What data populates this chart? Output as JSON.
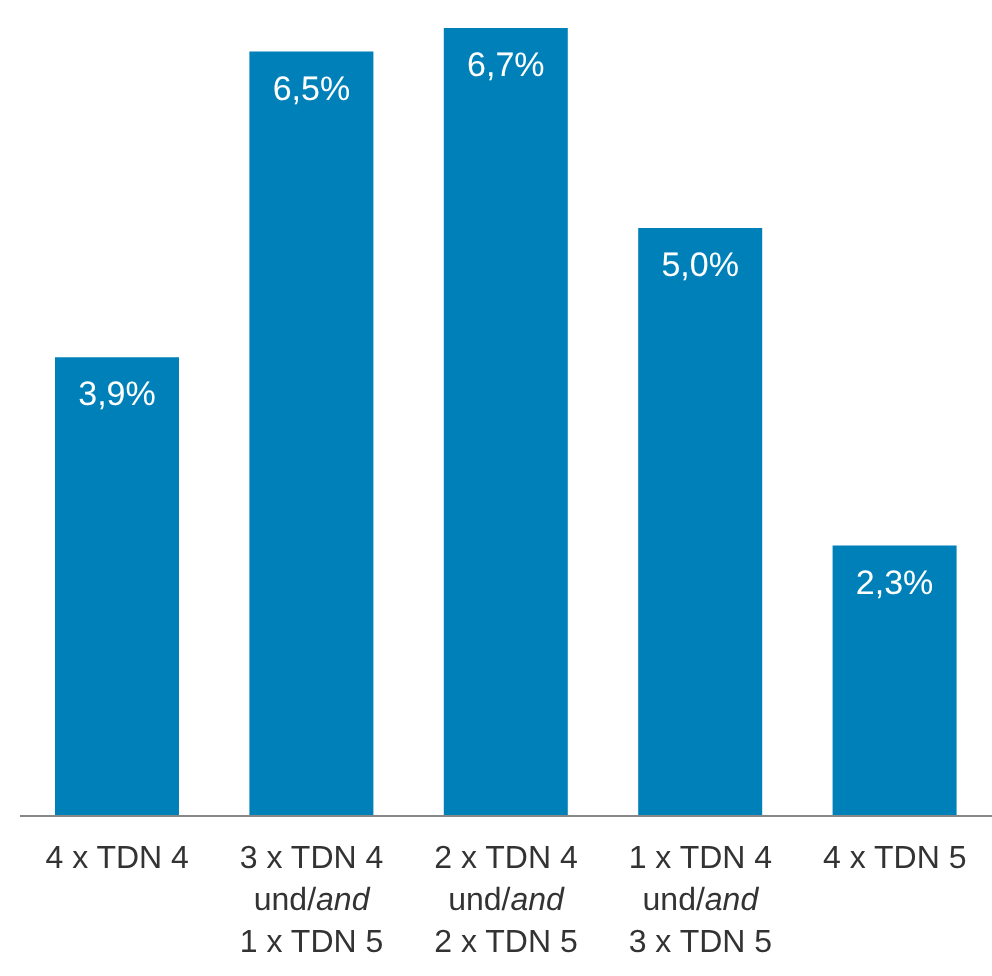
{
  "chart_data": {
    "type": "bar",
    "categories": [
      "4 x TDN 4",
      "3 x TDN 4\nund/and\n1 x TDN 5",
      "2 x TDN 4\nund/and\n2 x TDN 5",
      "1 x TDN 4\nund/and\n3 x TDN 5",
      "4 x TDN 5"
    ],
    "values": [
      3.9,
      6.5,
      6.7,
      5.0,
      2.3
    ],
    "value_labels": [
      "3,9%",
      "6,5%",
      "6,7%",
      "5,0%",
      "2,3%"
    ],
    "color": "#0080b8",
    "grid": false,
    "legend": false
  }
}
